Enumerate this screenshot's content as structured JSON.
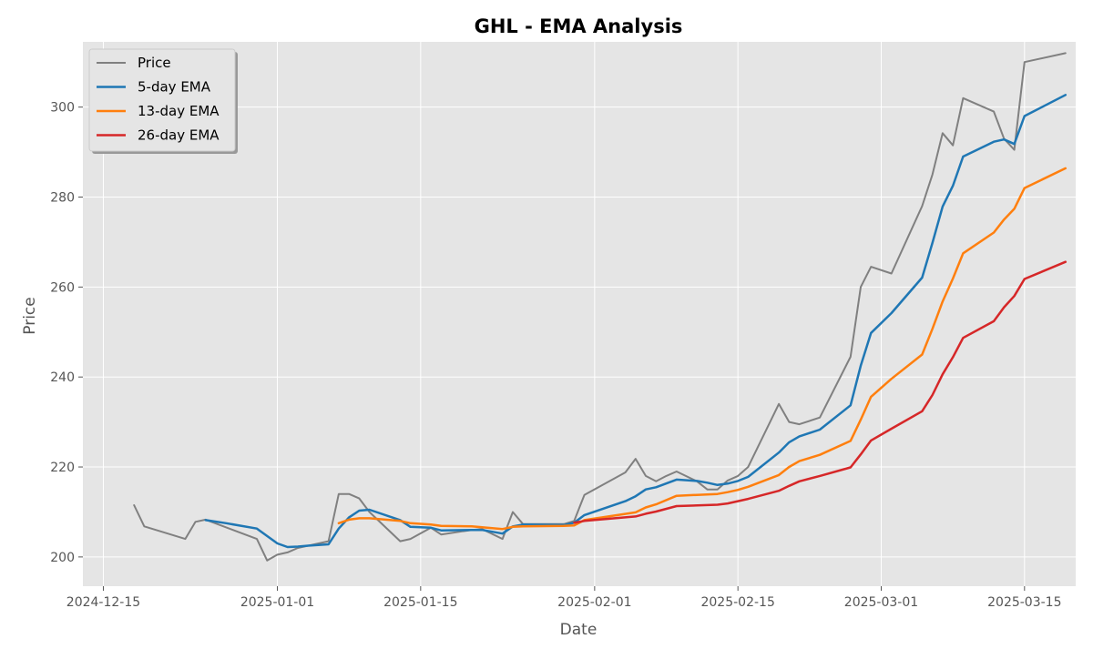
{
  "chart_data": {
    "type": "line",
    "title": "GHL - EMA Analysis",
    "xlabel": "Date",
    "ylabel": "Price",
    "x_ticks": [
      "2024-12-15",
      "2025-01-01",
      "2025-01-15",
      "2025-02-01",
      "2025-02-15",
      "2025-03-01",
      "2025-03-15"
    ],
    "y_ticks": [
      200,
      220,
      240,
      260,
      280,
      300
    ],
    "xlim": [
      "2024-12-13",
      "2025-03-20"
    ],
    "ylim": [
      193.5,
      314.5
    ],
    "grid": true,
    "legend_position": "top-left",
    "background_color": "#e5e5e5",
    "grid_color": "#ffffff",
    "series": [
      {
        "name": "Price",
        "color": "#808080",
        "points": [
          [
            "2024-12-18",
            211.5
          ],
          [
            "2024-12-19",
            206.8
          ],
          [
            "2024-12-23",
            204.0
          ],
          [
            "2024-12-24",
            207.8
          ],
          [
            "2024-12-25",
            208.3
          ],
          [
            "2024-12-30",
            204.0
          ],
          [
            "2024-12-31",
            199.2
          ],
          [
            "2025-01-01",
            200.5
          ],
          [
            "2025-01-02",
            201.0
          ],
          [
            "2025-01-03",
            202.0
          ],
          [
            "2025-01-06",
            203.5
          ],
          [
            "2025-01-07",
            214.0
          ],
          [
            "2025-01-08",
            214.0
          ],
          [
            "2025-01-09",
            213.0
          ],
          [
            "2025-01-10",
            210.0
          ],
          [
            "2025-01-13",
            203.5
          ],
          [
            "2025-01-14",
            204.0
          ],
          [
            "2025-01-16",
            206.5
          ],
          [
            "2025-01-17",
            205.0
          ],
          [
            "2025-01-20",
            206.0
          ],
          [
            "2025-01-21",
            206.2
          ],
          [
            "2025-01-23",
            204.0
          ],
          [
            "2025-01-24",
            210.0
          ],
          [
            "2025-01-25",
            207.3
          ],
          [
            "2025-01-29",
            207.3
          ],
          [
            "2025-01-30",
            208.0
          ],
          [
            "2025-01-31",
            213.8
          ],
          [
            "2025-02-04",
            218.8
          ],
          [
            "2025-02-05",
            221.8
          ],
          [
            "2025-02-06",
            218.0
          ],
          [
            "2025-02-07",
            216.8
          ],
          [
            "2025-02-08",
            218.0
          ],
          [
            "2025-02-09",
            219.0
          ],
          [
            "2025-02-11",
            216.8
          ],
          [
            "2025-02-12",
            215.0
          ],
          [
            "2025-02-13",
            215.0
          ],
          [
            "2025-02-14",
            217.0
          ],
          [
            "2025-02-15",
            218.0
          ],
          [
            "2025-02-16",
            220.0
          ],
          [
            "2025-02-19",
            234.0
          ],
          [
            "2025-02-20",
            230.0
          ],
          [
            "2025-02-21",
            229.5
          ],
          [
            "2025-02-23",
            231.0
          ],
          [
            "2025-02-26",
            244.5
          ],
          [
            "2025-02-27",
            260.0
          ],
          [
            "2025-02-28",
            264.5
          ],
          [
            "2025-03-02",
            263.0
          ],
          [
            "2025-03-05",
            278.0
          ],
          [
            "2025-03-06",
            285.0
          ],
          [
            "2025-03-07",
            294.2
          ],
          [
            "2025-03-08",
            291.5
          ],
          [
            "2025-03-09",
            302.0
          ],
          [
            "2025-03-12",
            299.0
          ],
          [
            "2025-03-13",
            293.0
          ],
          [
            "2025-03-14",
            290.5
          ],
          [
            "2025-03-15",
            310.0
          ],
          [
            "2025-03-19",
            312.0
          ]
        ]
      },
      {
        "name": "5-day EMA",
        "color": "#1f77b4",
        "points": [
          [
            "2024-12-25",
            208.2
          ],
          [
            "2024-12-27",
            207.5
          ],
          [
            "2024-12-30",
            206.3
          ],
          [
            "2025-01-01",
            203.0
          ],
          [
            "2025-01-02",
            202.2
          ],
          [
            "2025-01-03",
            202.3
          ],
          [
            "2025-01-04",
            202.5
          ],
          [
            "2025-01-06",
            202.8
          ],
          [
            "2025-01-07",
            206.3
          ],
          [
            "2025-01-08",
            208.8
          ],
          [
            "2025-01-09",
            210.3
          ],
          [
            "2025-01-10",
            210.5
          ],
          [
            "2025-01-13",
            208.2
          ],
          [
            "2025-01-14",
            206.7
          ],
          [
            "2025-01-16",
            206.5
          ],
          [
            "2025-01-17",
            205.9
          ],
          [
            "2025-01-20",
            206.0
          ],
          [
            "2025-01-21",
            206.0
          ],
          [
            "2025-01-23",
            205.2
          ],
          [
            "2025-01-24",
            206.8
          ],
          [
            "2025-01-25",
            207.2
          ],
          [
            "2025-01-29",
            207.1
          ],
          [
            "2025-01-30",
            207.6
          ],
          [
            "2025-01-31",
            209.3
          ],
          [
            "2025-02-04",
            212.4
          ],
          [
            "2025-02-05",
            213.5
          ],
          [
            "2025-02-06",
            215.0
          ],
          [
            "2025-02-07",
            215.5
          ],
          [
            "2025-02-09",
            217.2
          ],
          [
            "2025-02-11",
            216.9
          ],
          [
            "2025-02-12",
            216.5
          ],
          [
            "2025-02-13",
            216.0
          ],
          [
            "2025-02-14",
            216.3
          ],
          [
            "2025-02-15",
            216.9
          ],
          [
            "2025-02-16",
            217.8
          ],
          [
            "2025-02-19",
            223.2
          ],
          [
            "2025-02-20",
            225.5
          ],
          [
            "2025-02-21",
            226.8
          ],
          [
            "2025-02-23",
            228.3
          ],
          [
            "2025-02-26",
            233.7
          ],
          [
            "2025-02-27",
            242.5
          ],
          [
            "2025-02-28",
            249.8
          ],
          [
            "2025-03-02",
            254.2
          ],
          [
            "2025-03-05",
            262.1
          ],
          [
            "2025-03-06",
            269.8
          ],
          [
            "2025-03-07",
            277.9
          ],
          [
            "2025-03-08",
            282.5
          ],
          [
            "2025-03-09",
            289.0
          ],
          [
            "2025-03-12",
            292.3
          ],
          [
            "2025-03-13",
            292.8
          ],
          [
            "2025-03-14",
            291.8
          ],
          [
            "2025-03-15",
            298.0
          ],
          [
            "2025-03-19",
            302.7
          ]
        ]
      },
      {
        "name": "13-day EMA",
        "color": "#ff7f0e",
        "points": [
          [
            "2025-01-07",
            207.5
          ],
          [
            "2025-01-08",
            208.3
          ],
          [
            "2025-01-09",
            208.6
          ],
          [
            "2025-01-10",
            208.6
          ],
          [
            "2025-01-13",
            208.0
          ],
          [
            "2025-01-14",
            207.5
          ],
          [
            "2025-01-16",
            207.2
          ],
          [
            "2025-01-17",
            206.9
          ],
          [
            "2025-01-20",
            206.8
          ],
          [
            "2025-01-21",
            206.6
          ],
          [
            "2025-01-23",
            206.2
          ],
          [
            "2025-01-24",
            206.7
          ],
          [
            "2025-01-25",
            206.8
          ],
          [
            "2025-01-29",
            206.9
          ],
          [
            "2025-01-30",
            207.0
          ],
          [
            "2025-01-31",
            208.2
          ],
          [
            "2025-02-05",
            209.9
          ],
          [
            "2025-02-06",
            211.0
          ],
          [
            "2025-02-07",
            211.7
          ],
          [
            "2025-02-09",
            213.6
          ],
          [
            "2025-02-11",
            213.8
          ],
          [
            "2025-02-13",
            214.0
          ],
          [
            "2025-02-14",
            214.4
          ],
          [
            "2025-02-15",
            214.9
          ],
          [
            "2025-02-16",
            215.6
          ],
          [
            "2025-02-19",
            218.2
          ],
          [
            "2025-02-20",
            220.0
          ],
          [
            "2025-02-21",
            221.3
          ],
          [
            "2025-02-23",
            222.7
          ],
          [
            "2025-02-26",
            225.8
          ],
          [
            "2025-02-27",
            230.5
          ],
          [
            "2025-02-28",
            235.6
          ],
          [
            "2025-03-02",
            239.6
          ],
          [
            "2025-03-05",
            245.0
          ],
          [
            "2025-03-06",
            250.7
          ],
          [
            "2025-03-07",
            256.8
          ],
          [
            "2025-03-08",
            261.9
          ],
          [
            "2025-03-09",
            267.5
          ],
          [
            "2025-03-12",
            272.1
          ],
          [
            "2025-03-13",
            275.0
          ],
          [
            "2025-03-14",
            277.4
          ],
          [
            "2025-03-15",
            282.0
          ],
          [
            "2025-03-19",
            286.4
          ]
        ]
      },
      {
        "name": "26-day EMA",
        "color": "#d62728",
        "points": [
          [
            "2025-01-30",
            207.6
          ],
          [
            "2025-01-31",
            208.0
          ],
          [
            "2025-02-05",
            209.0
          ],
          [
            "2025-02-06",
            209.6
          ],
          [
            "2025-02-07",
            210.1
          ],
          [
            "2025-02-09",
            211.3
          ],
          [
            "2025-02-13",
            211.6
          ],
          [
            "2025-02-14",
            211.9
          ],
          [
            "2025-02-16",
            212.9
          ],
          [
            "2025-02-19",
            214.7
          ],
          [
            "2025-02-20",
            215.8
          ],
          [
            "2025-02-21",
            216.8
          ],
          [
            "2025-02-23",
            218.0
          ],
          [
            "2025-02-26",
            219.9
          ],
          [
            "2025-02-27",
            222.8
          ],
          [
            "2025-02-28",
            225.9
          ],
          [
            "2025-03-02",
            228.5
          ],
          [
            "2025-03-05",
            232.4
          ],
          [
            "2025-03-06",
            236.0
          ],
          [
            "2025-03-07",
            240.6
          ],
          [
            "2025-03-08",
            244.4
          ],
          [
            "2025-03-09",
            248.7
          ],
          [
            "2025-03-12",
            252.4
          ],
          [
            "2025-03-13",
            255.5
          ],
          [
            "2025-03-14",
            258.0
          ],
          [
            "2025-03-15",
            261.8
          ],
          [
            "2025-03-19",
            265.6
          ]
        ]
      }
    ]
  }
}
